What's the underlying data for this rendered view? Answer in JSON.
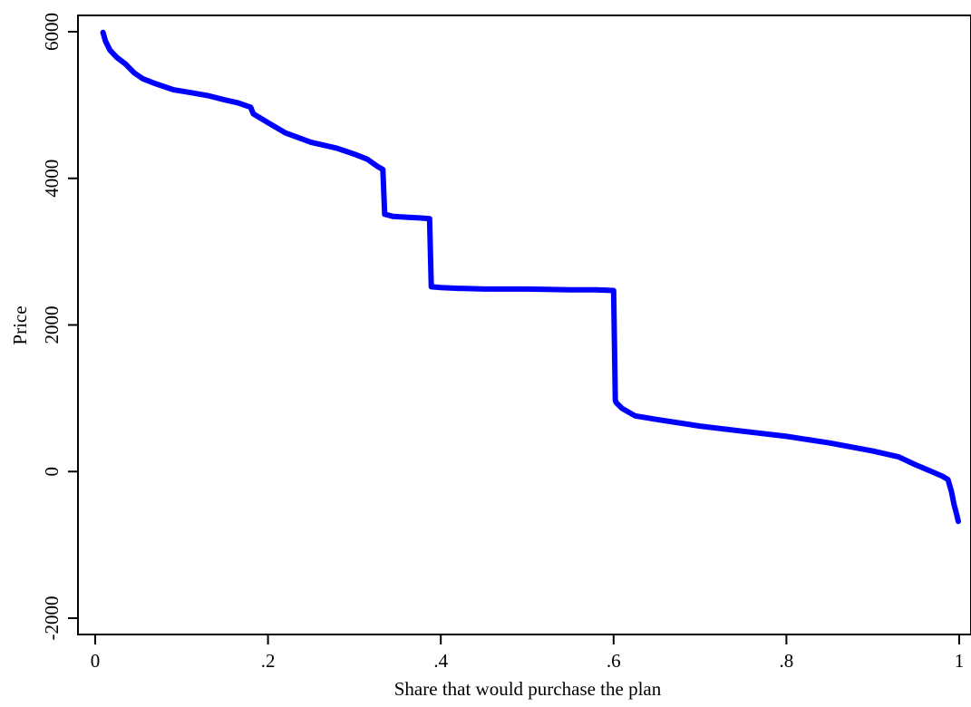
{
  "chart_data": {
    "type": "line",
    "title": "",
    "xlabel": "Share that would purchase the plan",
    "ylabel": "Price",
    "xlim": [
      0,
      1
    ],
    "ylim": [
      -2000,
      6000
    ],
    "xticks": [
      0,
      0.2,
      0.4,
      0.6,
      0.8,
      1
    ],
    "xtick_labels": [
      "0",
      ".2",
      ".4",
      ".6",
      ".8",
      "1"
    ],
    "yticks": [
      -2000,
      0,
      2000,
      4000,
      6000
    ],
    "ytick_labels": [
      "-2000",
      "0",
      "2000",
      "4000",
      "6000"
    ],
    "grid": false,
    "legend": "none",
    "series": [
      {
        "color": "#0000ff",
        "x": [
          0.009,
          0.012,
          0.017,
          0.025,
          0.035,
          0.045,
          0.055,
          0.07,
          0.09,
          0.11,
          0.13,
          0.15,
          0.165,
          0.18,
          0.183,
          0.2,
          0.22,
          0.25,
          0.28,
          0.3,
          0.315,
          0.327,
          0.333,
          0.335,
          0.345,
          0.36,
          0.375,
          0.387,
          0.389,
          0.4,
          0.42,
          0.45,
          0.5,
          0.55,
          0.58,
          0.6,
          0.602,
          0.603,
          0.61,
          0.625,
          0.65,
          0.7,
          0.75,
          0.8,
          0.85,
          0.9,
          0.93,
          0.95,
          0.96,
          0.98,
          0.987,
          0.991,
          0.994,
          0.997,
          0.999
        ],
        "y": [
          5990,
          5870,
          5750,
          5650,
          5560,
          5440,
          5360,
          5290,
          5210,
          5170,
          5130,
          5070,
          5030,
          4970,
          4880,
          4760,
          4620,
          4490,
          4410,
          4330,
          4260,
          4160,
          4120,
          3510,
          3480,
          3470,
          3460,
          3450,
          2520,
          2510,
          2500,
          2490,
          2490,
          2480,
          2480,
          2470,
          970,
          940,
          860,
          760,
          710,
          620,
          550,
          480,
          390,
          280,
          200,
          90,
          40,
          -60,
          -110,
          -270,
          -450,
          -580,
          -680
        ]
      }
    ]
  }
}
